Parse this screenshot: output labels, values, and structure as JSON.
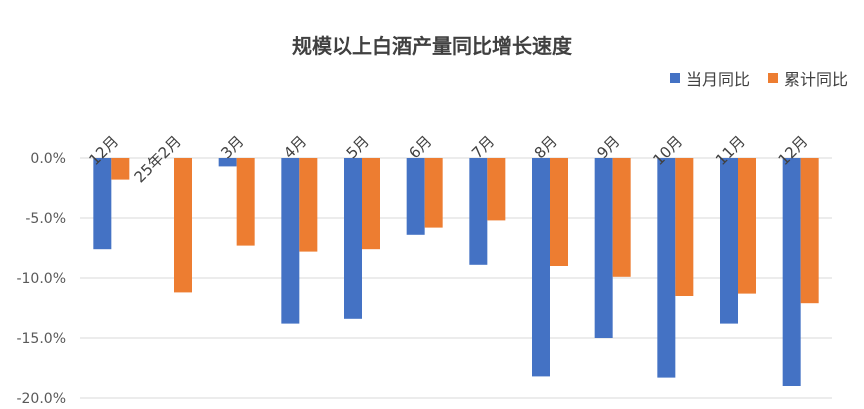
{
  "chart_data": {
    "type": "bar",
    "title": "规模以上白酒产量同比增长速度",
    "categories": [
      "12月",
      "25年2月",
      "3月",
      "4月",
      "5月",
      "6月",
      "7月",
      "8月",
      "9月",
      "10月",
      "11月",
      "12月"
    ],
    "series": [
      {
        "name": "当月同比",
        "color": "#4472C4",
        "values": [
          -7.6,
          0,
          -0.7,
          -13.8,
          -13.4,
          -6.4,
          -8.9,
          -18.2,
          -15.0,
          -18.3,
          -13.8,
          -19.0
        ]
      },
      {
        "name": "累计同比",
        "color": "#ED7D31",
        "values": [
          -1.8,
          -11.2,
          -7.3,
          -7.8,
          -7.6,
          -5.8,
          -5.2,
          -9.0,
          -9.9,
          -11.5,
          -11.3,
          -12.1
        ]
      }
    ],
    "yticks": [
      "0.0%",
      "-5.0%",
      "-10.0%",
      "-15.0%",
      "-20.0%"
    ],
    "ylim": [
      -20,
      0
    ],
    "legend_position": "top-right",
    "grid": true
  }
}
